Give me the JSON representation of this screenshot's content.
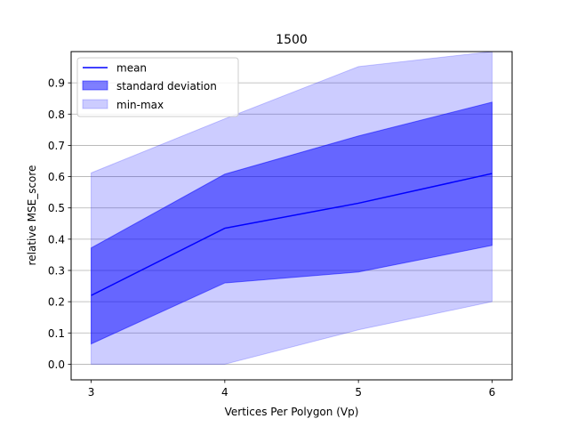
{
  "chart_data": {
    "type": "area",
    "title": "1500",
    "xlabel": "Vertices Per Polygon (Vp)",
    "ylabel": "relative MSE_score",
    "x": [
      3,
      4,
      5,
      6
    ],
    "xticks": [
      3,
      4,
      5,
      6
    ],
    "yticks": [
      0.0,
      0.1,
      0.2,
      0.3,
      0.4,
      0.5,
      0.6,
      0.7,
      0.8,
      0.9
    ],
    "ytick_labels": [
      "0.0",
      "0.1",
      "0.2",
      "0.3",
      "0.4",
      "0.5",
      "0.6",
      "0.7",
      "0.8",
      "0.9"
    ],
    "xlim": [
      2.85,
      6.15
    ],
    "ylim": [
      -0.05,
      1.0
    ],
    "grid": "y",
    "legend_position": "upper-left",
    "series": [
      {
        "name": "mean",
        "kind": "line",
        "color": "#0000ff",
        "values": [
          0.22,
          0.435,
          0.515,
          0.61
        ]
      },
      {
        "name": "standard deviation",
        "kind": "band",
        "color": "#0000ff",
        "opacity": 0.5,
        "lower": [
          0.065,
          0.26,
          0.295,
          0.38
        ],
        "upper": [
          0.372,
          0.608,
          0.73,
          0.838
        ]
      },
      {
        "name": "min-max",
        "kind": "band",
        "color": "#0000ff",
        "opacity": 0.2,
        "lower": [
          0.0,
          0.0,
          0.11,
          0.2
        ],
        "upper": [
          0.612,
          0.785,
          0.952,
          1.0
        ]
      }
    ]
  }
}
